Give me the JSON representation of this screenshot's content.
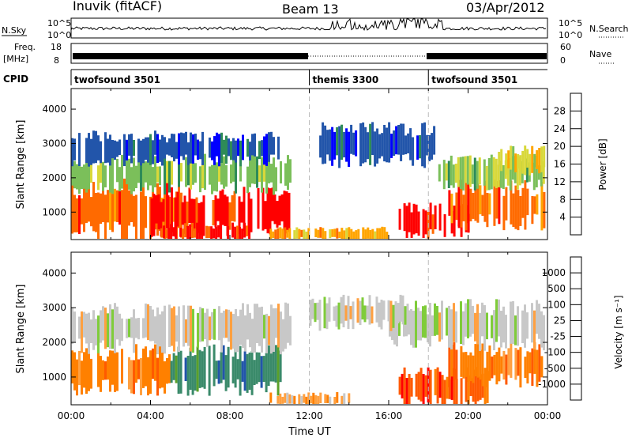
{
  "header": {
    "station": "Inuvik (fitACF)",
    "beam": "Beam 13",
    "date": "03/Apr/2012"
  },
  "status_panels": {
    "nsky": {
      "label": "N.Sky",
      "ytick_top": "10^5",
      "ytick_bottom": "10^0",
      "right_label": "N.Search",
      "right_ytick_top": "10^5",
      "right_ytick_bottom": "10^0"
    },
    "freq": {
      "label_top": "Freq.",
      "label_bottom": "[MHz]",
      "ytick_top": "18",
      "ytick_bottom": "8",
      "right_label": "Nave",
      "right_ytick_top": "60",
      "right_ytick_bottom": "0"
    },
    "cpid": {
      "label": "CPID"
    }
  },
  "colors": {
    "power_scale": [
      "#0000ff",
      "#2255aa",
      "#2e8b57",
      "#7bbf5a",
      "#d8d83a",
      "#ffa500",
      "#ff6a00",
      "#ff0000"
    ],
    "velocity_scale": [
      "#2255aa",
      "#3a8a6a",
      "#5aa02a",
      "#7fcc3a",
      "#c8c8c8",
      "#ffa040",
      "#ff8000",
      "#ff5a00",
      "#ff0000"
    ]
  },
  "chart_data": [
    {
      "type": "timeline",
      "name": "CPID",
      "segments": [
        {
          "start_ut": "00:00",
          "end_ut": "12:00",
          "label": "twofsound 3501"
        },
        {
          "start_ut": "12:00",
          "end_ut": "18:00",
          "label": "themis 3300"
        },
        {
          "start_ut": "18:00",
          "end_ut": "24:00",
          "label": "twofsound 3501"
        }
      ]
    },
    {
      "type": "heatmap",
      "title": "",
      "xlabel": "",
      "ylabel": "Slant Range [km]",
      "xlim": [
        "00:00",
        "24:00"
      ],
      "ylim": [
        200,
        4600
      ],
      "xticks": [
        "00:00",
        "04:00",
        "08:00",
        "12:00",
        "16:00",
        "20:00",
        "00:00"
      ],
      "yticks": [
        1000,
        2000,
        3000,
        4000
      ],
      "colorbar": {
        "label": "Power [dB]",
        "ticks": [
          4,
          8,
          12,
          16,
          20,
          24,
          28
        ],
        "range": [
          0,
          32
        ]
      },
      "bands": [
        {
          "t0": 0.0,
          "t1": 5.5,
          "r0": 400,
          "r1": 1700,
          "level": 6
        },
        {
          "t0": 4.0,
          "t1": 11.0,
          "r0": 500,
          "r1": 1500,
          "level": 7
        },
        {
          "t0": 4.5,
          "t1": 9.0,
          "r0": 200,
          "r1": 600,
          "level": 7
        },
        {
          "t0": 0.0,
          "t1": 11.0,
          "r0": 1700,
          "r1": 2500,
          "level": 3
        },
        {
          "t0": 0.0,
          "t1": 10.5,
          "r0": 2500,
          "r1": 3200,
          "level": 1
        },
        {
          "t0": 10.0,
          "t1": 16.0,
          "r0": 200,
          "r1": 500,
          "level": 5
        },
        {
          "t0": 12.5,
          "t1": 18.5,
          "r0": 2500,
          "r1": 3400,
          "level": 1
        },
        {
          "t0": 16.5,
          "t1": 20.0,
          "r0": 400,
          "r1": 1100,
          "level": 7
        },
        {
          "t0": 19.0,
          "t1": 23.8,
          "r0": 700,
          "r1": 1700,
          "level": 6
        },
        {
          "t0": 18.5,
          "t1": 23.8,
          "r0": 1800,
          "r1": 2500,
          "level": 3
        },
        {
          "t0": 21.5,
          "t1": 23.8,
          "r0": 2200,
          "r1": 2800,
          "level": 4
        }
      ]
    },
    {
      "type": "heatmap",
      "title": "",
      "xlabel": "Time UT",
      "ylabel": "Slant Range [km]",
      "xlim": [
        "00:00",
        "24:00"
      ],
      "ylim": [
        200,
        4600
      ],
      "xticks": [
        "00:00",
        "04:00",
        "08:00",
        "12:00",
        "16:00",
        "20:00",
        "00:00"
      ],
      "yticks": [
        1000,
        2000,
        3000,
        4000
      ],
      "colorbar": {
        "label": "Velocity [m s⁻¹]",
        "ticks": [
          1000,
          500,
          100,
          25,
          -25,
          -100,
          -500,
          -1000
        ]
      },
      "bands": [
        {
          "t0": 0.0,
          "t1": 5.0,
          "r0": 700,
          "r1": 1700,
          "level": 6
        },
        {
          "t0": 5.0,
          "t1": 10.5,
          "r0": 700,
          "r1": 1700,
          "level": 1
        },
        {
          "t0": 0.0,
          "t1": 11.0,
          "r0": 1900,
          "r1": 2900,
          "level": 4
        },
        {
          "t0": 10.0,
          "t1": 14.0,
          "r0": 200,
          "r1": 500,
          "level": 5
        },
        {
          "t0": 16.5,
          "t1": 21.0,
          "r0": 300,
          "r1": 1100,
          "level": 7
        },
        {
          "t0": 19.0,
          "t1": 23.8,
          "r0": 900,
          "r1": 1800,
          "level": 6
        },
        {
          "t0": 16.0,
          "t1": 23.8,
          "r0": 2000,
          "r1": 3000,
          "level": 4
        },
        {
          "t0": 12.0,
          "t1": 17.0,
          "r0": 2500,
          "r1": 3200,
          "level": 4
        }
      ]
    }
  ]
}
